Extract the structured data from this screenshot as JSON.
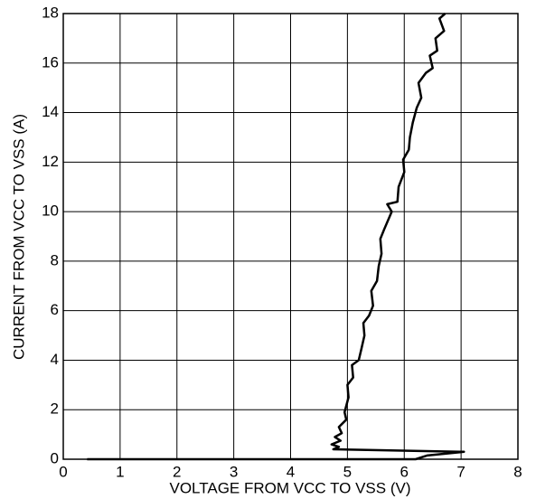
{
  "chart_data": {
    "type": "line",
    "x_label": "VOLTAGE FROM VCC TO VSS (V)",
    "y_label": "CURRENT FROM VCC TO VSS (A)",
    "xlim": [
      0,
      8
    ],
    "xticks": [
      0,
      1,
      2,
      3,
      4,
      5,
      6,
      7,
      8
    ],
    "ylim": [
      0,
      18
    ],
    "yticks": [
      0,
      2,
      4,
      6,
      8,
      10,
      12,
      14,
      16,
      18
    ],
    "grid": true,
    "series": [
      {
        "color": "#000000",
        "x": [
          0.42,
          6.2,
          6.4,
          7.05,
          4.75,
          4.85,
          4.72,
          4.88,
          4.78,
          4.9,
          4.85,
          4.98,
          4.95,
          5.02,
          5.0,
          5.1,
          5.08,
          5.2,
          5.25,
          5.3,
          5.28,
          5.38,
          5.45,
          5.42,
          5.52,
          5.55,
          5.6,
          5.58,
          5.65,
          5.78,
          5.7,
          5.88,
          5.9,
          6.0,
          5.98,
          6.08,
          6.1,
          6.15,
          6.22,
          6.3,
          6.25,
          6.38,
          6.5,
          6.45,
          6.58,
          6.55,
          6.7,
          6.62,
          6.72
        ],
        "values": [
          0,
          0,
          0.15,
          0.3,
          0.4,
          0.5,
          0.6,
          0.75,
          0.9,
          1.05,
          1.3,
          1.6,
          1.9,
          2.5,
          3.0,
          3.3,
          3.8,
          4.0,
          4.5,
          5.0,
          5.5,
          5.8,
          6.2,
          6.8,
          7.2,
          7.8,
          8.3,
          8.9,
          9.3,
          10.0,
          10.3,
          10.4,
          11.0,
          11.6,
          12.1,
          12.5,
          13.0,
          13.6,
          14.2,
          14.6,
          15.2,
          15.6,
          15.8,
          16.3,
          16.5,
          17.0,
          17.3,
          17.8,
          18.0
        ]
      }
    ]
  }
}
